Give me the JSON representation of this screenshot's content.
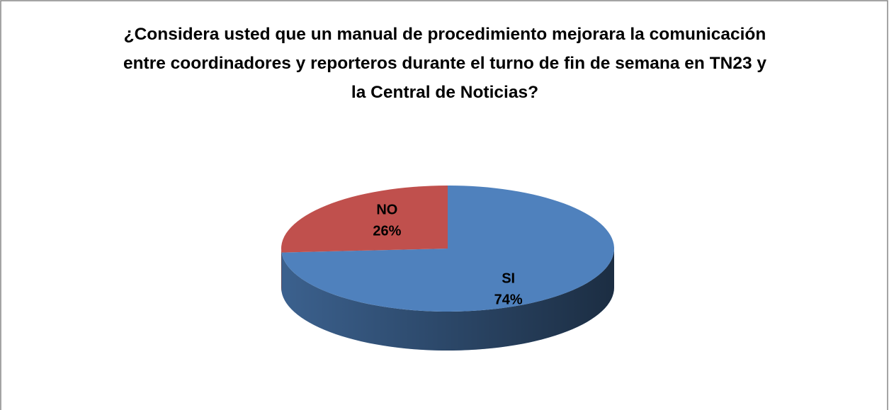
{
  "chart_data": {
    "type": "pie",
    "title": "¿Considera usted que un manual de procedimiento mejorara la comunicación  entre coordinadores y reporteros durante el turno de fin de semana en TN23 y la Central de Noticias?",
    "categories": [
      "SI",
      "NO"
    ],
    "values": [
      74,
      26
    ],
    "value_labels": [
      "74%",
      "26%"
    ],
    "colors": [
      "#4f81bd",
      "#c0504d"
    ]
  }
}
